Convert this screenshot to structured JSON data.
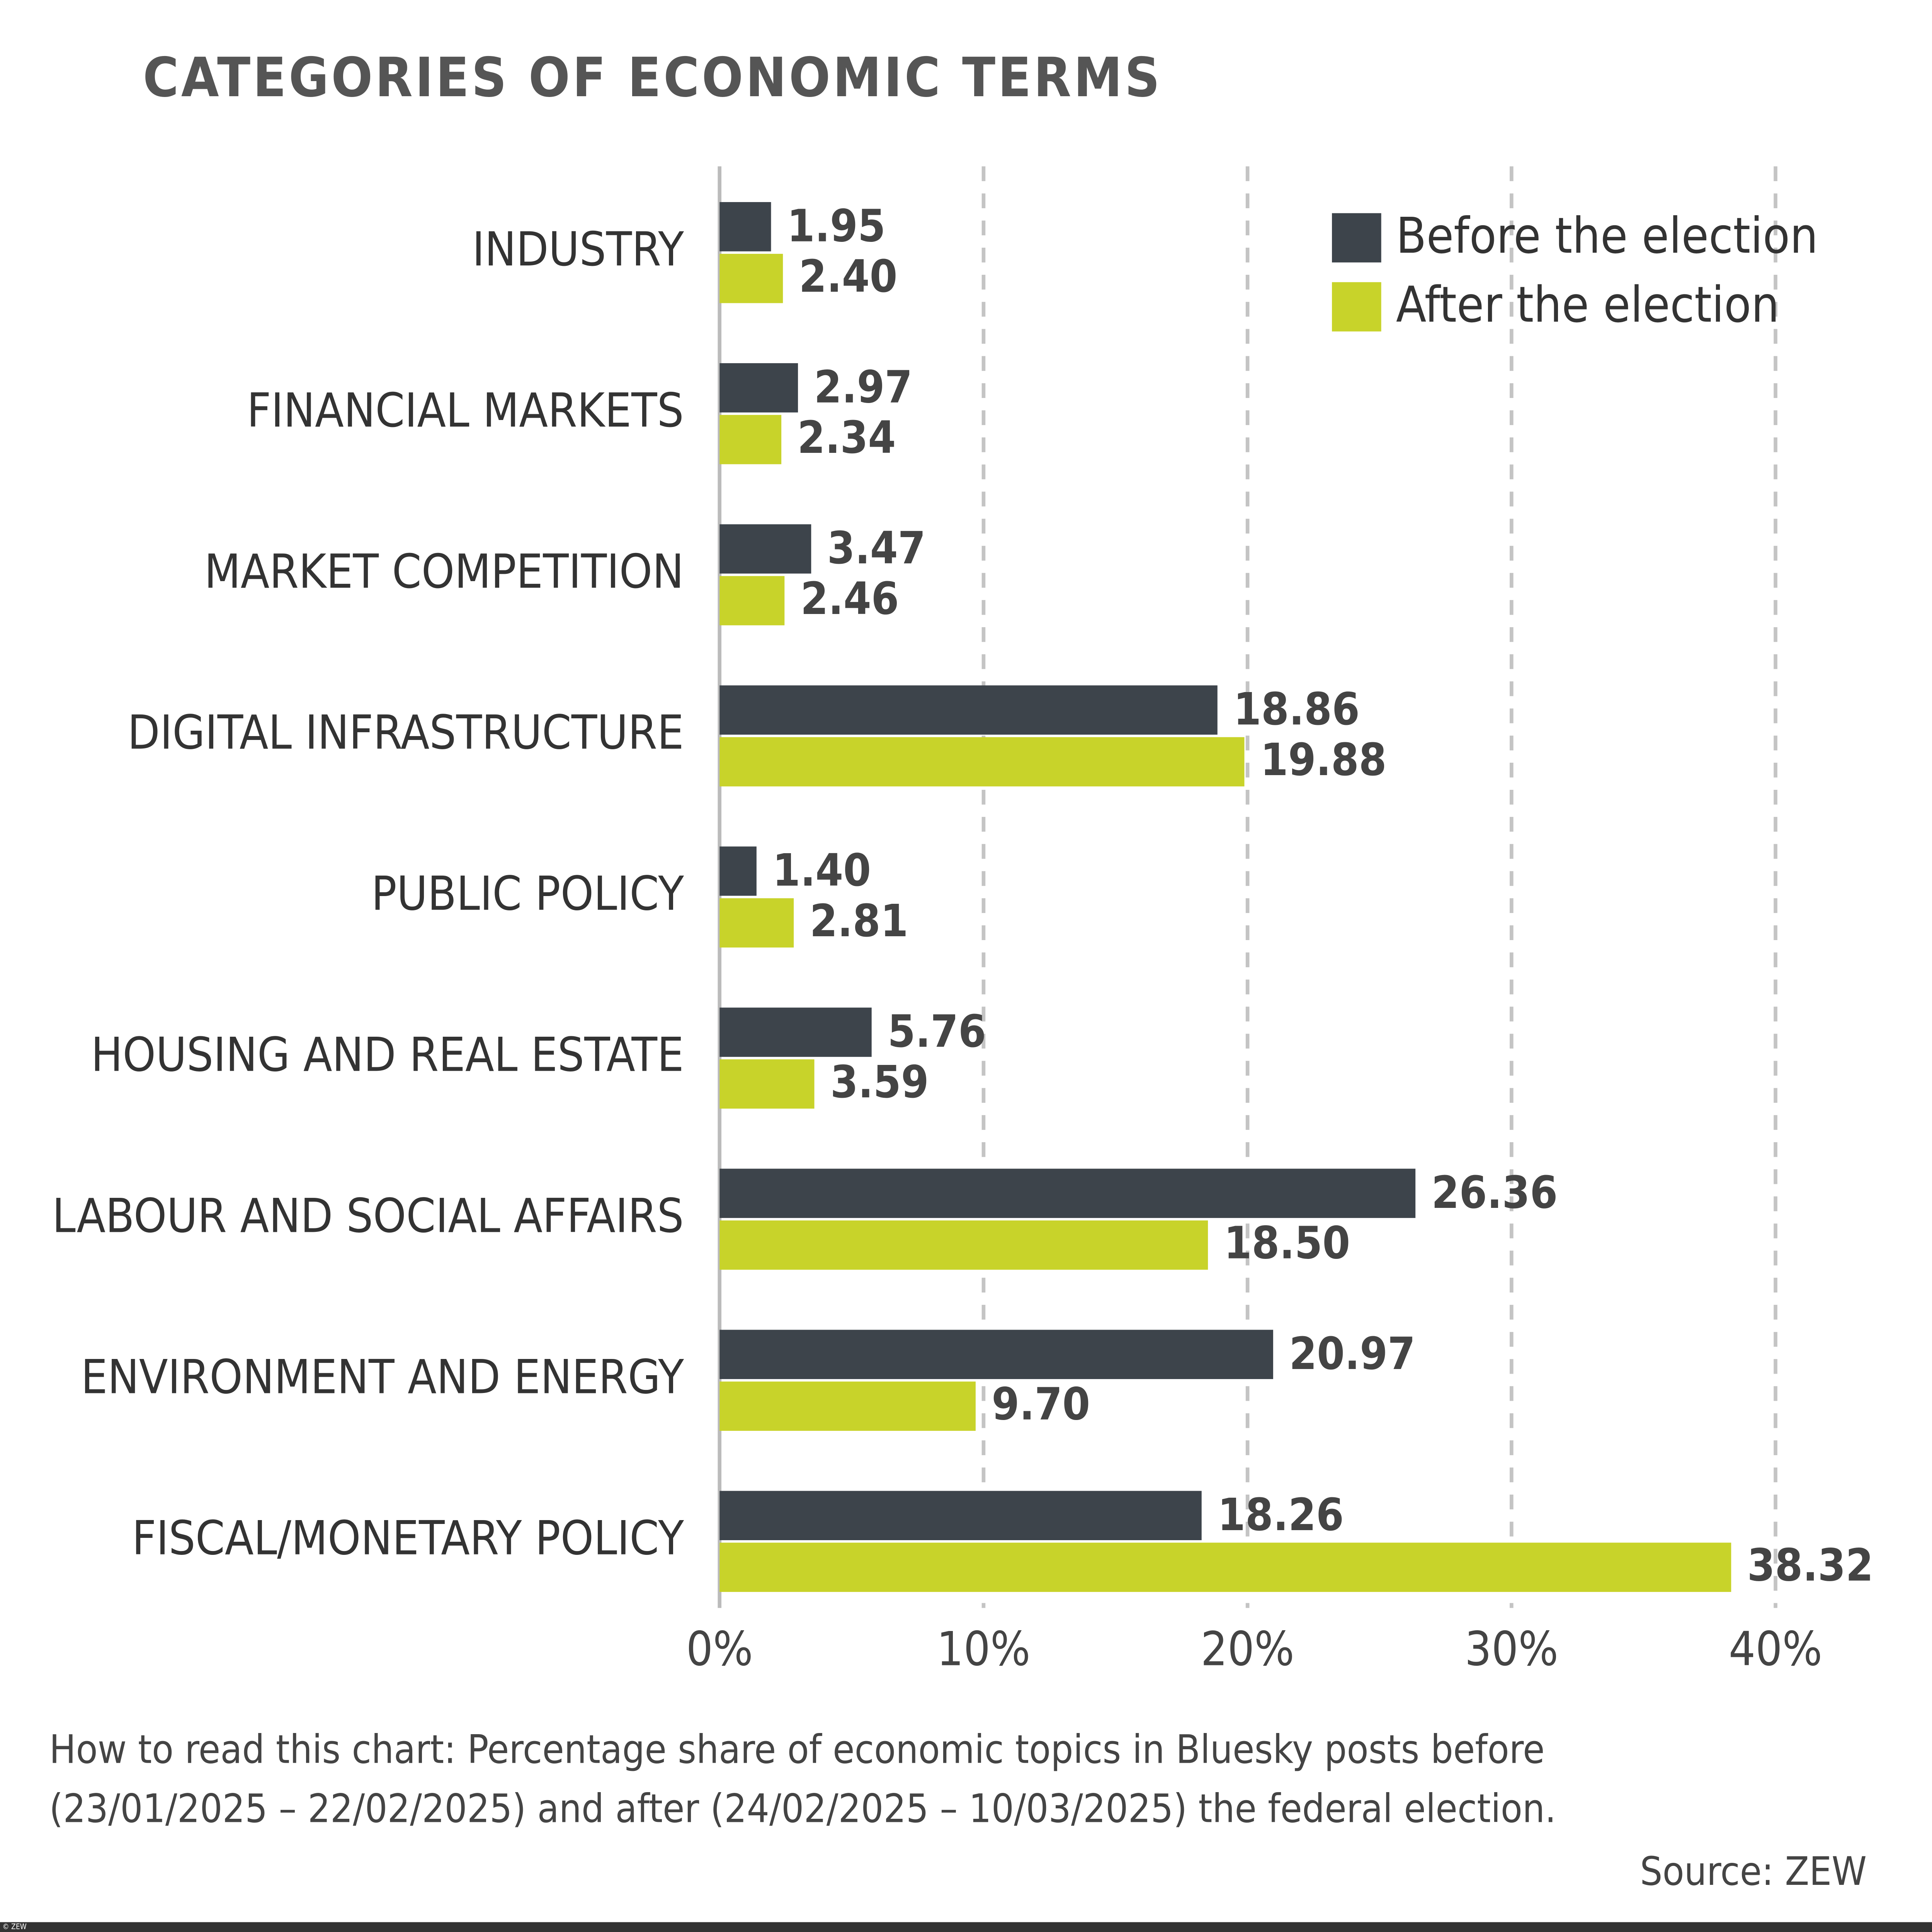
{
  "chart_data": {
    "type": "barh",
    "title": "CATEGORIES OF ECONOMIC TERMS",
    "categories": [
      "INDUSTRY",
      "FINANCIAL MARKETS",
      "MARKET COMPETITION",
      "DIGITAL INFRASTRUCTURE",
      "PUBLIC POLICY",
      "HOUSING AND REAL ESTATE",
      "LABOUR AND SOCIAL AFFAIRS",
      "ENVIRONMENT AND ENERGY",
      "FISCAL/MONETARY POLICY"
    ],
    "series": [
      {
        "name": "Before the election",
        "color": "#3d444b",
        "values": [
          1.95,
          2.97,
          3.47,
          18.86,
          1.4,
          5.76,
          26.36,
          20.97,
          18.26
        ],
        "value_labels": [
          "1.95",
          "2.97",
          "3.47",
          "18.86",
          "1.40",
          "5.76",
          "26.36",
          "20.97",
          "18.26"
        ]
      },
      {
        "name": "After the election",
        "color": "#c8d32a",
        "values": [
          2.4,
          2.34,
          2.46,
          19.88,
          2.81,
          3.59,
          18.5,
          9.7,
          38.32
        ],
        "value_labels": [
          "2.40",
          "2.34",
          "2.46",
          "19.88",
          "2.81",
          "3.59",
          "18.50",
          "9.70",
          "38.32"
        ]
      }
    ],
    "xlim": [
      0,
      40
    ],
    "xticks": [
      {
        "value": 0,
        "label": "0%"
      },
      {
        "value": 10,
        "label": "10%"
      },
      {
        "value": 20,
        "label": "20%"
      },
      {
        "value": 30,
        "label": "30%"
      },
      {
        "value": 40,
        "label": "40%"
      }
    ],
    "grid": true,
    "legend": "top-right",
    "note": [
      "How to read this chart: Percentage share of economic topics in Bluesky posts before",
      "(23/01/2025 – 22/02/2025) and after (24/02/2025 – 10/03/2025) the federal election."
    ],
    "source": "Source: ZEW",
    "copyright": "© ZEW"
  }
}
